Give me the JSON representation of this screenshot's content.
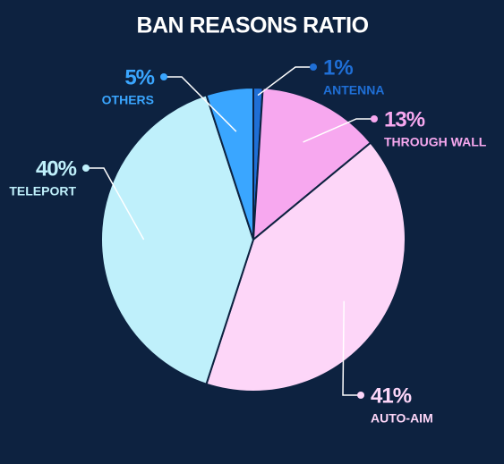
{
  "chart_data": {
    "type": "pie",
    "title": "BAN REASONS RATIO",
    "categories": [
      "ANTENNA",
      "THROUGH WALL",
      "AUTO-AIM",
      "TELEPORT",
      "OTHERS"
    ],
    "values": [
      1,
      13,
      41,
      40,
      5
    ],
    "value_labels": [
      "1%",
      "13%",
      "41%",
      "40%",
      "5%"
    ],
    "colors": [
      "#1f6fd6",
      "#f7a8ef",
      "#fdd6f8",
      "#bff0fb",
      "#3aa6ff"
    ]
  }
}
